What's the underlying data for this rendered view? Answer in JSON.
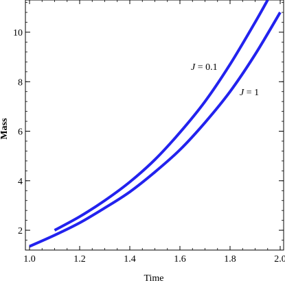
{
  "chart_data": {
    "type": "line",
    "xlabel": "Time",
    "ylabel": "Mass",
    "xlim": [
      1.0,
      2.0
    ],
    "ylim": [
      1.2,
      11.3
    ],
    "xticks": [
      1.0,
      1.2,
      1.4,
      1.6,
      1.8,
      2.0
    ],
    "xtick_labels": [
      "1.0",
      "1.2",
      "1.4",
      "1.6",
      "1.8",
      "2.0"
    ],
    "yticks": [
      2,
      4,
      6,
      8,
      10
    ],
    "ytick_labels": [
      "2",
      "4",
      "6",
      "8",
      "10"
    ],
    "grid": false,
    "series": [
      {
        "name": "J = 0.1",
        "color": "#2222ee",
        "x": [
          1.1,
          1.2,
          1.3,
          1.4,
          1.5,
          1.6,
          1.7,
          1.8,
          1.9,
          1.95
        ],
        "y": [
          2.0,
          2.55,
          3.2,
          3.95,
          4.85,
          5.95,
          7.2,
          8.7,
          10.4,
          11.3
        ]
      },
      {
        "name": "J = 1",
        "color": "#2222ee",
        "x": [
          1.0,
          1.1,
          1.2,
          1.3,
          1.4,
          1.5,
          1.6,
          1.7,
          1.8,
          1.9,
          2.0
        ],
        "y": [
          1.35,
          1.8,
          2.3,
          2.9,
          3.55,
          4.35,
          5.25,
          6.35,
          7.6,
          9.1,
          10.8
        ]
      }
    ]
  }
}
